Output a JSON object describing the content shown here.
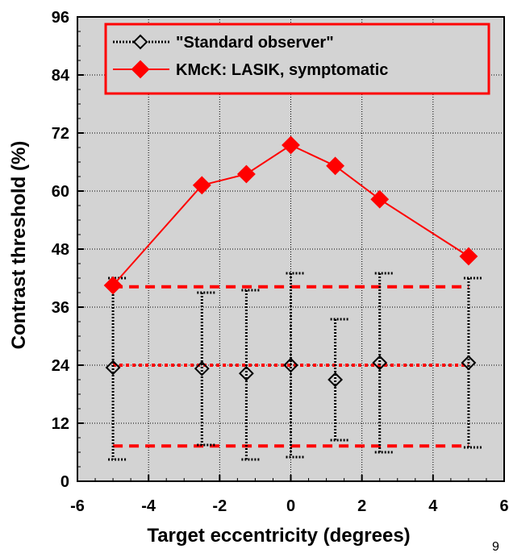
{
  "chart_data": {
    "type": "line",
    "title": "",
    "xlabel": "Target eccentricity (degrees)",
    "ylabel": "Contrast threshold (%)",
    "xlim": [
      -6,
      6
    ],
    "ylim": [
      0,
      96
    ],
    "xticks": [
      -6,
      -4,
      -2,
      0,
      2,
      4,
      6
    ],
    "yticks": [
      0,
      12,
      24,
      36,
      48,
      60,
      72,
      84,
      96
    ],
    "grid": true,
    "legend_position": "top",
    "background": "#d3d3d3",
    "series": [
      {
        "name": "\"Standard observer\"",
        "style": "dotted",
        "color": "#000000",
        "marker": "open-diamond",
        "points": [
          {
            "x": -5,
            "y": 23.5,
            "low": 4.5,
            "high": 42
          },
          {
            "x": -2.5,
            "y": 23.3,
            "low": 7.5,
            "high": 39
          },
          {
            "x": -1.25,
            "y": 22.3,
            "low": 4.5,
            "high": 39.5
          },
          {
            "x": 0,
            "y": 24,
            "low": 5,
            "high": 43
          },
          {
            "x": 1.25,
            "y": 21,
            "low": 8.5,
            "high": 33.5
          },
          {
            "x": 2.5,
            "y": 24.5,
            "low": 6,
            "high": 43
          },
          {
            "x": 5,
            "y": 24.5,
            "low": 7,
            "high": 42
          }
        ]
      },
      {
        "name": "KMcK: LASIK, symptomatic",
        "style": "solid",
        "color": "#ff0000",
        "marker": "filled-diamond",
        "points": [
          {
            "x": -5,
            "y": 40.5
          },
          {
            "x": -2.5,
            "y": 61.2
          },
          {
            "x": -1.25,
            "y": 63.5
          },
          {
            "x": 0,
            "y": 69.5
          },
          {
            "x": 1.25,
            "y": 65.2
          },
          {
            "x": 2.5,
            "y": 58.3
          },
          {
            "x": 5,
            "y": 46.5
          }
        ]
      }
    ],
    "reference_lines": {
      "color": "#ff0000",
      "y": [
        40.2,
        24,
        7.3
      ],
      "x_range": [
        -5,
        5
      ],
      "styles": [
        "dashed",
        "dotted",
        "dashed"
      ]
    }
  },
  "corner_label": "9"
}
